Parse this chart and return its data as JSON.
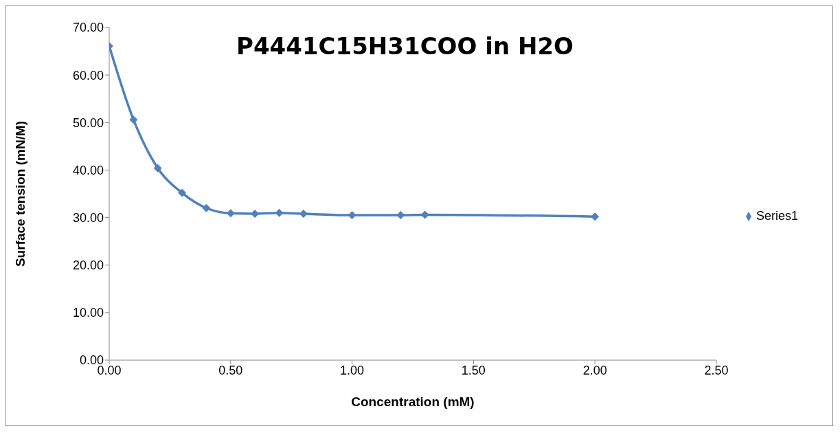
{
  "chart_data": {
    "type": "line",
    "title": "P4441C15H31COO in H2O",
    "xlabel": "Concentration (mM)",
    "ylabel": "Surface tension (mN/M)",
    "x": [
      0,
      0.1,
      0.2,
      0.3,
      0.4,
      0.5,
      0.6,
      0.7,
      0.8,
      1.0,
      1.2,
      1.3,
      2.0
    ],
    "series": [
      {
        "name": "Series1",
        "color": "#4f81bd",
        "values": [
          66.1,
          50.6,
          40.4,
          35.2,
          32.0,
          30.9,
          30.8,
          31.0,
          30.8,
          30.5,
          30.5,
          30.6,
          30.2
        ]
      }
    ],
    "xlim": [
      0,
      2.5
    ],
    "xticks": [
      {
        "value": 0,
        "label": "0.00"
      },
      {
        "value": 0.5,
        "label": "0.50"
      },
      {
        "value": 1,
        "label": "1.00"
      },
      {
        "value": 1.5,
        "label": "1.50"
      },
      {
        "value": 2,
        "label": "2.00"
      },
      {
        "value": 2.5,
        "label": "2.50"
      }
    ],
    "ylim": [
      0,
      70
    ],
    "yticks": [
      {
        "value": 0,
        "label": "0.00"
      },
      {
        "value": 10,
        "label": "10.00"
      },
      {
        "value": 20,
        "label": "20.00"
      },
      {
        "value": 30,
        "label": "30.00"
      },
      {
        "value": 40,
        "label": "40.00"
      },
      {
        "value": 50,
        "label": "50.00"
      },
      {
        "value": 60,
        "label": "60.00"
      },
      {
        "value": 70,
        "label": "70.00"
      }
    ],
    "grid": false,
    "legend": "right",
    "marker": "diamond",
    "line_style": "solid"
  }
}
